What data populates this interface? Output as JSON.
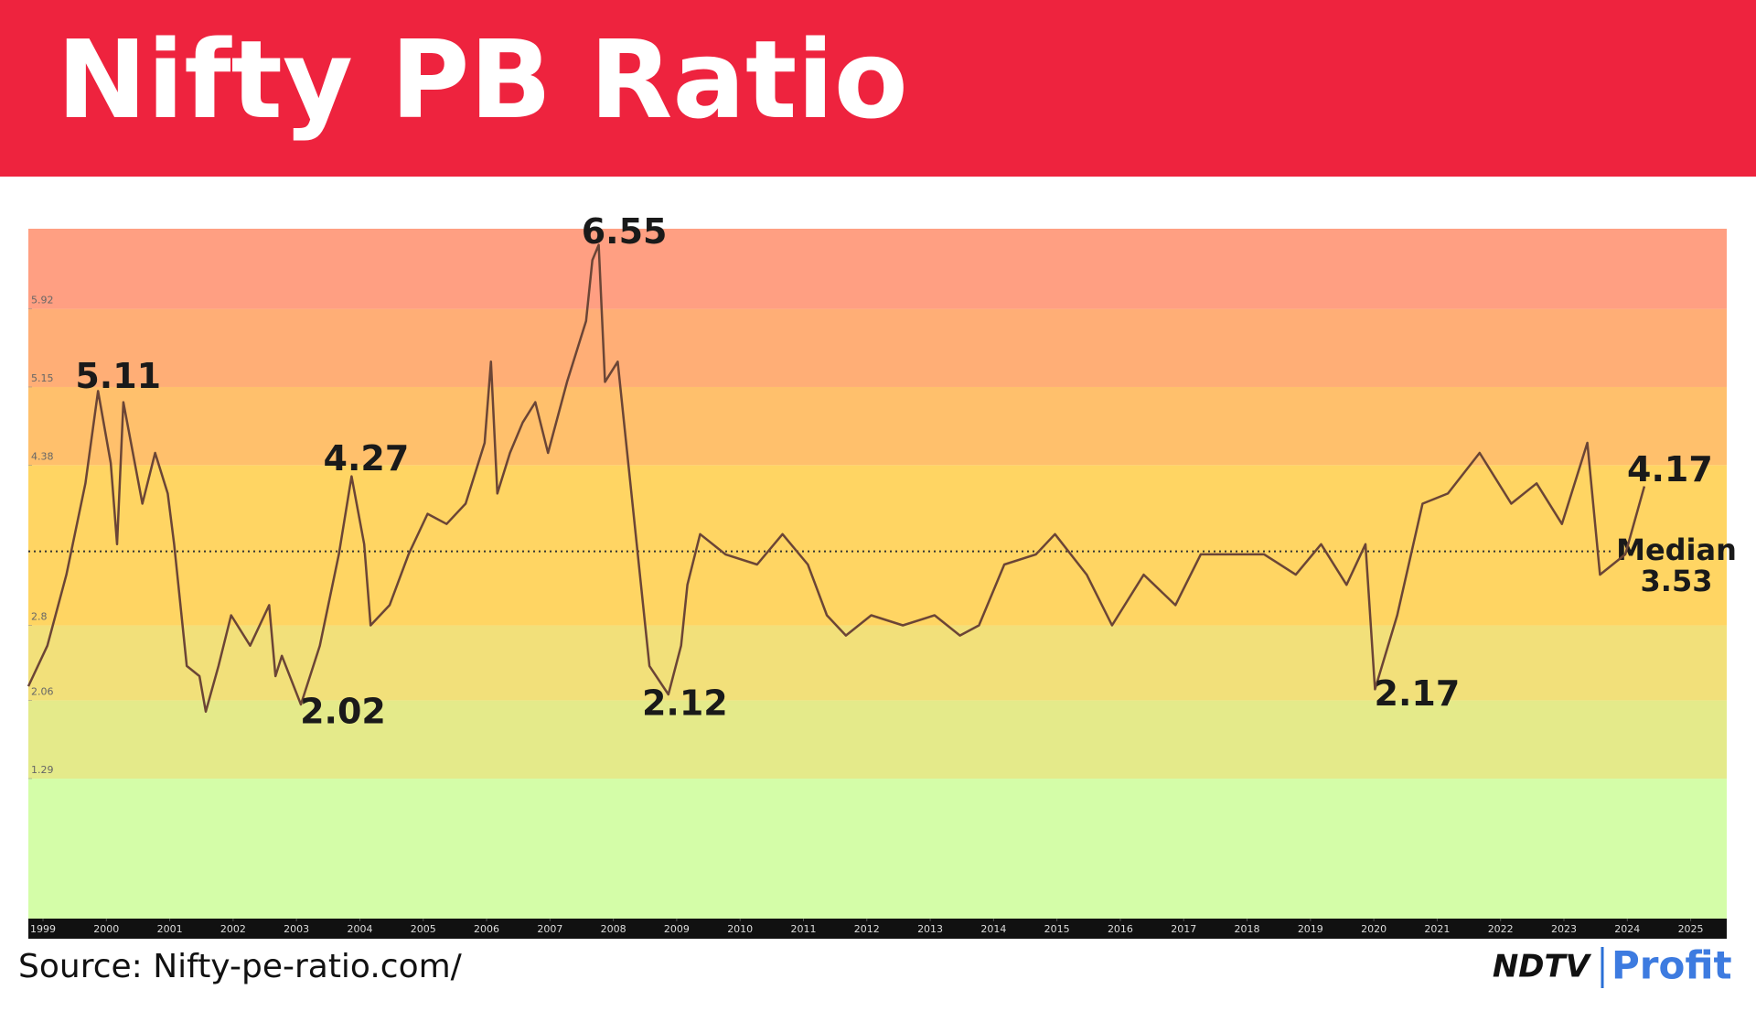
{
  "header": {
    "title": "Nifty PB Ratio"
  },
  "chart_data": {
    "type": "line",
    "x": [
      1999.0,
      1999.3,
      1999.6,
      1999.9,
      2000.1,
      2000.3,
      2000.4,
      2000.5,
      2000.8,
      2001.0,
      2001.2,
      2001.3,
      2001.5,
      2001.7,
      2001.8,
      2002.0,
      2002.2,
      2002.5,
      2002.8,
      2002.9,
      2003.0,
      2003.3,
      2003.6,
      2003.9,
      2004.1,
      2004.3,
      2004.4,
      2004.7,
      2005.0,
      2005.3,
      2005.6,
      2005.9,
      2006.2,
      2006.3,
      2006.4,
      2006.6,
      2006.8,
      2007.0,
      2007.2,
      2007.5,
      2007.8,
      2007.9,
      2008.0,
      2008.1,
      2008.3,
      2008.4,
      2008.6,
      2008.8,
      2009.1,
      2009.3,
      2009.4,
      2009.6,
      2010.0,
      2010.5,
      2010.9,
      2011.3,
      2011.6,
      2011.9,
      2012.3,
      2012.8,
      2013.3,
      2013.7,
      2014.0,
      2014.4,
      2014.9,
      2015.2,
      2015.7,
      2016.1,
      2016.6,
      2017.1,
      2017.5,
      2018.0,
      2018.5,
      2019.0,
      2019.4,
      2019.8,
      2020.1,
      2020.25,
      2020.6,
      2021.0,
      2021.4,
      2021.9,
      2022.4,
      2022.8,
      2023.2,
      2023.6,
      2023.8,
      2024.2,
      2024.5
    ],
    "series": [
      {
        "color": "#6b4536",
        "values": [
          2.2,
          2.6,
          3.3,
          4.2,
          5.11,
          4.4,
          3.6,
          5.0,
          4.0,
          4.5,
          4.1,
          3.6,
          2.4,
          2.3,
          1.95,
          2.4,
          2.9,
          2.6,
          3.0,
          2.3,
          2.5,
          2.02,
          2.6,
          3.5,
          4.27,
          3.6,
          2.8,
          3.0,
          3.5,
          3.9,
          3.8,
          4.0,
          4.6,
          5.4,
          4.1,
          4.5,
          4.8,
          5.0,
          4.5,
          5.2,
          5.8,
          6.4,
          6.55,
          5.2,
          5.4,
          4.8,
          3.6,
          2.4,
          2.12,
          2.6,
          3.2,
          3.7,
          3.5,
          3.4,
          3.7,
          3.4,
          2.9,
          2.7,
          2.9,
          2.8,
          2.9,
          2.7,
          2.8,
          3.4,
          3.5,
          3.7,
          3.3,
          2.8,
          3.3,
          3.0,
          3.5,
          3.5,
          3.5,
          3.3,
          3.6,
          3.2,
          3.6,
          2.17,
          2.9,
          4.0,
          4.1,
          4.5,
          4.0,
          4.2,
          3.8,
          4.6,
          3.3,
          3.5,
          4.17
        ]
      }
    ],
    "xlim": [
      1999,
      2025.8
    ],
    "xticks": [
      1999,
      2000,
      2001,
      2002,
      2003,
      2004,
      2005,
      2006,
      2007,
      2008,
      2009,
      2010,
      2011,
      2012,
      2013,
      2014,
      2015,
      2016,
      2017,
      2018,
      2019,
      2020,
      2021,
      2022,
      2023,
      2024,
      2025
    ],
    "ylim": [
      -0.09,
      6.71
    ],
    "yticks": [
      1.29,
      2.06,
      2.8,
      4.38,
      5.15,
      5.92
    ],
    "band_colors": [
      "#d4fda8",
      "#e4ea8a",
      "#f2e07a",
      "#ffd563",
      "#ffc06c",
      "#ffae76",
      "#ff9f82"
    ],
    "annotations": [
      {
        "x": 2000.1,
        "value": 5.11
      },
      {
        "x": 2003.3,
        "value": 2.02
      },
      {
        "x": 2004.1,
        "value": 4.27
      },
      {
        "x": 2008.0,
        "value": 6.55
      },
      {
        "x": 2009.1,
        "value": 2.12
      },
      {
        "x": 2020.25,
        "value": 2.17
      },
      {
        "x": 2024.5,
        "value": 4.17
      }
    ],
    "median": {
      "label": "Median",
      "value": 3.53
    }
  },
  "footer": {
    "source": "Source: Nifty-pe-ratio.com/",
    "brand": "NDTV",
    "product": "Profit"
  }
}
